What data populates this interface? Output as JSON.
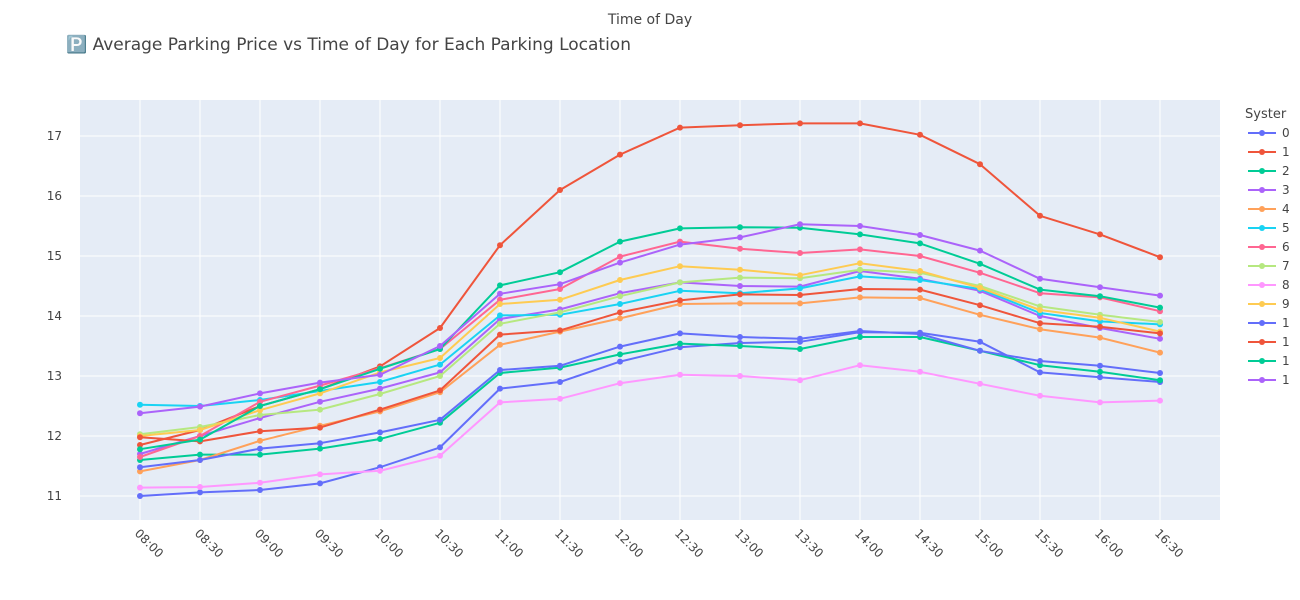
{
  "chart_data": {
    "type": "line",
    "title": "🅿️ Average Parking Price vs Time of Day for Each Parking Location",
    "xlabel": "Time of Day",
    "ylabel": "",
    "legend_title": "Syster",
    "legend_placement": "right",
    "grid": true,
    "ylim": [
      10.6,
      17.6
    ],
    "yticks": [
      11,
      12,
      13,
      14,
      15,
      16,
      17
    ],
    "categories": [
      "08:00",
      "08:30",
      "09:00",
      "09:30",
      "10:00",
      "10:30",
      "11:00",
      "11:30",
      "12:00",
      "12:30",
      "13:00",
      "13:30",
      "14:00",
      "14:30",
      "15:00",
      "15:30",
      "16:00",
      "16:30"
    ],
    "series": [
      {
        "name": "0",
        "color": "#636efa",
        "values": [
          11.0,
          11.06,
          11.1,
          11.21,
          11.48,
          11.81,
          12.79,
          12.9,
          13.24,
          13.48,
          13.55,
          13.57,
          13.73,
          13.72,
          13.57,
          13.06,
          12.98,
          12.9
        ]
      },
      {
        "name": "1",
        "color": "#EF553B",
        "values": [
          11.85,
          12.1,
          12.5,
          12.78,
          13.16,
          13.8,
          15.18,
          16.1,
          16.69,
          17.14,
          17.18,
          17.21,
          17.21,
          17.02,
          16.53,
          15.67,
          15.36,
          14.98
        ]
      },
      {
        "name": "2",
        "color": "#00cc96",
        "values": [
          11.6,
          11.69,
          11.69,
          11.79,
          11.95,
          12.22,
          13.05,
          13.14,
          13.36,
          13.54,
          13.5,
          13.45,
          13.65,
          13.65,
          13.42,
          13.18,
          13.07,
          12.93
        ]
      },
      {
        "name": "3",
        "color": "#ab63fa",
        "values": [
          11.7,
          12.0,
          12.3,
          12.57,
          12.79,
          13.06,
          13.95,
          14.11,
          14.38,
          14.56,
          14.5,
          14.49,
          14.75,
          14.62,
          14.42,
          14.0,
          13.8,
          13.62
        ]
      },
      {
        "name": "4",
        "color": "#FFA15A",
        "values": [
          11.41,
          11.6,
          11.92,
          12.17,
          12.41,
          12.73,
          13.52,
          13.74,
          13.96,
          14.2,
          14.21,
          14.21,
          14.31,
          14.3,
          14.02,
          13.78,
          13.64,
          13.39
        ]
      },
      {
        "name": "5",
        "color": "#19d3f3",
        "values": [
          12.52,
          12.5,
          12.6,
          12.75,
          12.9,
          13.19,
          14.01,
          14.02,
          14.2,
          14.42,
          14.38,
          14.46,
          14.66,
          14.6,
          14.45,
          14.05,
          13.91,
          13.86
        ]
      },
      {
        "name": "6",
        "color": "#FF6692",
        "values": [
          11.65,
          12.0,
          12.57,
          12.84,
          13.13,
          13.45,
          14.27,
          14.45,
          14.99,
          15.24,
          15.12,
          15.05,
          15.11,
          15.0,
          14.72,
          14.38,
          14.31,
          14.08
        ]
      },
      {
        "name": "7",
        "color": "#B6E880",
        "values": [
          12.03,
          12.15,
          12.35,
          12.44,
          12.7,
          13.0,
          13.87,
          14.06,
          14.33,
          14.56,
          14.64,
          14.63,
          14.77,
          14.72,
          14.5,
          14.16,
          14.02,
          13.9
        ]
      },
      {
        "name": "8",
        "color": "#FF97FF",
        "values": [
          11.14,
          11.15,
          11.22,
          11.36,
          11.42,
          11.67,
          12.56,
          12.62,
          12.88,
          13.02,
          13.0,
          12.93,
          13.18,
          13.07,
          12.87,
          12.67,
          12.56,
          12.59
        ]
      },
      {
        "name": "9",
        "color": "#FECB52",
        "values": [
          12.0,
          12.1,
          12.43,
          12.71,
          13.06,
          13.3,
          14.2,
          14.27,
          14.6,
          14.83,
          14.77,
          14.68,
          14.88,
          14.75,
          14.47,
          14.1,
          13.97,
          13.74
        ]
      },
      {
        "name": "1",
        "color": "#636efa",
        "values": [
          11.48,
          11.6,
          11.79,
          11.88,
          12.06,
          12.27,
          13.1,
          13.17,
          13.49,
          13.71,
          13.65,
          13.62,
          13.75,
          13.7,
          13.42,
          13.25,
          13.17,
          13.05
        ]
      },
      {
        "name": "1",
        "color": "#EF553B",
        "values": [
          11.98,
          11.91,
          12.08,
          12.14,
          12.44,
          12.76,
          13.69,
          13.76,
          14.06,
          14.26,
          14.36,
          14.35,
          14.45,
          14.44,
          14.18,
          13.88,
          13.82,
          13.71
        ]
      },
      {
        "name": "1",
        "color": "#00cc96",
        "values": [
          11.78,
          11.94,
          12.5,
          12.78,
          13.12,
          13.45,
          14.51,
          14.73,
          15.24,
          15.46,
          15.48,
          15.47,
          15.36,
          15.21,
          14.87,
          14.44,
          14.33,
          14.14
        ]
      },
      {
        "name": "1",
        "color": "#ab63fa",
        "values": [
          12.38,
          12.49,
          12.71,
          12.89,
          13.02,
          13.5,
          14.37,
          14.53,
          14.89,
          15.19,
          15.31,
          15.53,
          15.5,
          15.35,
          15.09,
          14.62,
          14.48,
          14.34
        ]
      }
    ]
  }
}
